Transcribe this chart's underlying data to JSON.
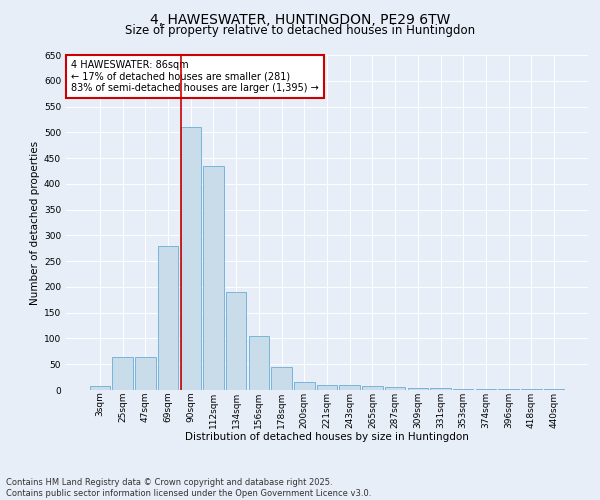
{
  "title": "4, HAWESWATER, HUNTINGDON, PE29 6TW",
  "subtitle": "Size of property relative to detached houses in Huntingdon",
  "xlabel": "Distribution of detached houses by size in Huntingdon",
  "ylabel": "Number of detached properties",
  "categories": [
    "3sqm",
    "25sqm",
    "47sqm",
    "69sqm",
    "90sqm",
    "112sqm",
    "134sqm",
    "156sqm",
    "178sqm",
    "200sqm",
    "221sqm",
    "243sqm",
    "265sqm",
    "287sqm",
    "309sqm",
    "331sqm",
    "353sqm",
    "374sqm",
    "396sqm",
    "418sqm",
    "440sqm"
  ],
  "values": [
    8,
    65,
    65,
    280,
    510,
    435,
    190,
    105,
    45,
    15,
    10,
    10,
    8,
    5,
    4,
    3,
    2,
    2,
    2,
    1,
    2
  ],
  "bar_color": "#c9dcea",
  "bar_edge_color": "#6aaed6",
  "vline_x_index": 4,
  "annotation_text": "4 HAWESWATER: 86sqm\n← 17% of detached houses are smaller (281)\n83% of semi-detached houses are larger (1,395) →",
  "annotation_box_color": "#ffffff",
  "annotation_border_color": "#cc0000",
  "vline_color": "#cc0000",
  "ylim": [
    0,
    650
  ],
  "yticks": [
    0,
    50,
    100,
    150,
    200,
    250,
    300,
    350,
    400,
    450,
    500,
    550,
    600,
    650
  ],
  "background_color": "#e8eef8",
  "grid_color": "#ffffff",
  "footer": "Contains HM Land Registry data © Crown copyright and database right 2025.\nContains public sector information licensed under the Open Government Licence v3.0.",
  "title_fontsize": 10,
  "subtitle_fontsize": 8.5,
  "axis_label_fontsize": 7.5,
  "tick_fontsize": 6.5,
  "annotation_fontsize": 7,
  "footer_fontsize": 6
}
